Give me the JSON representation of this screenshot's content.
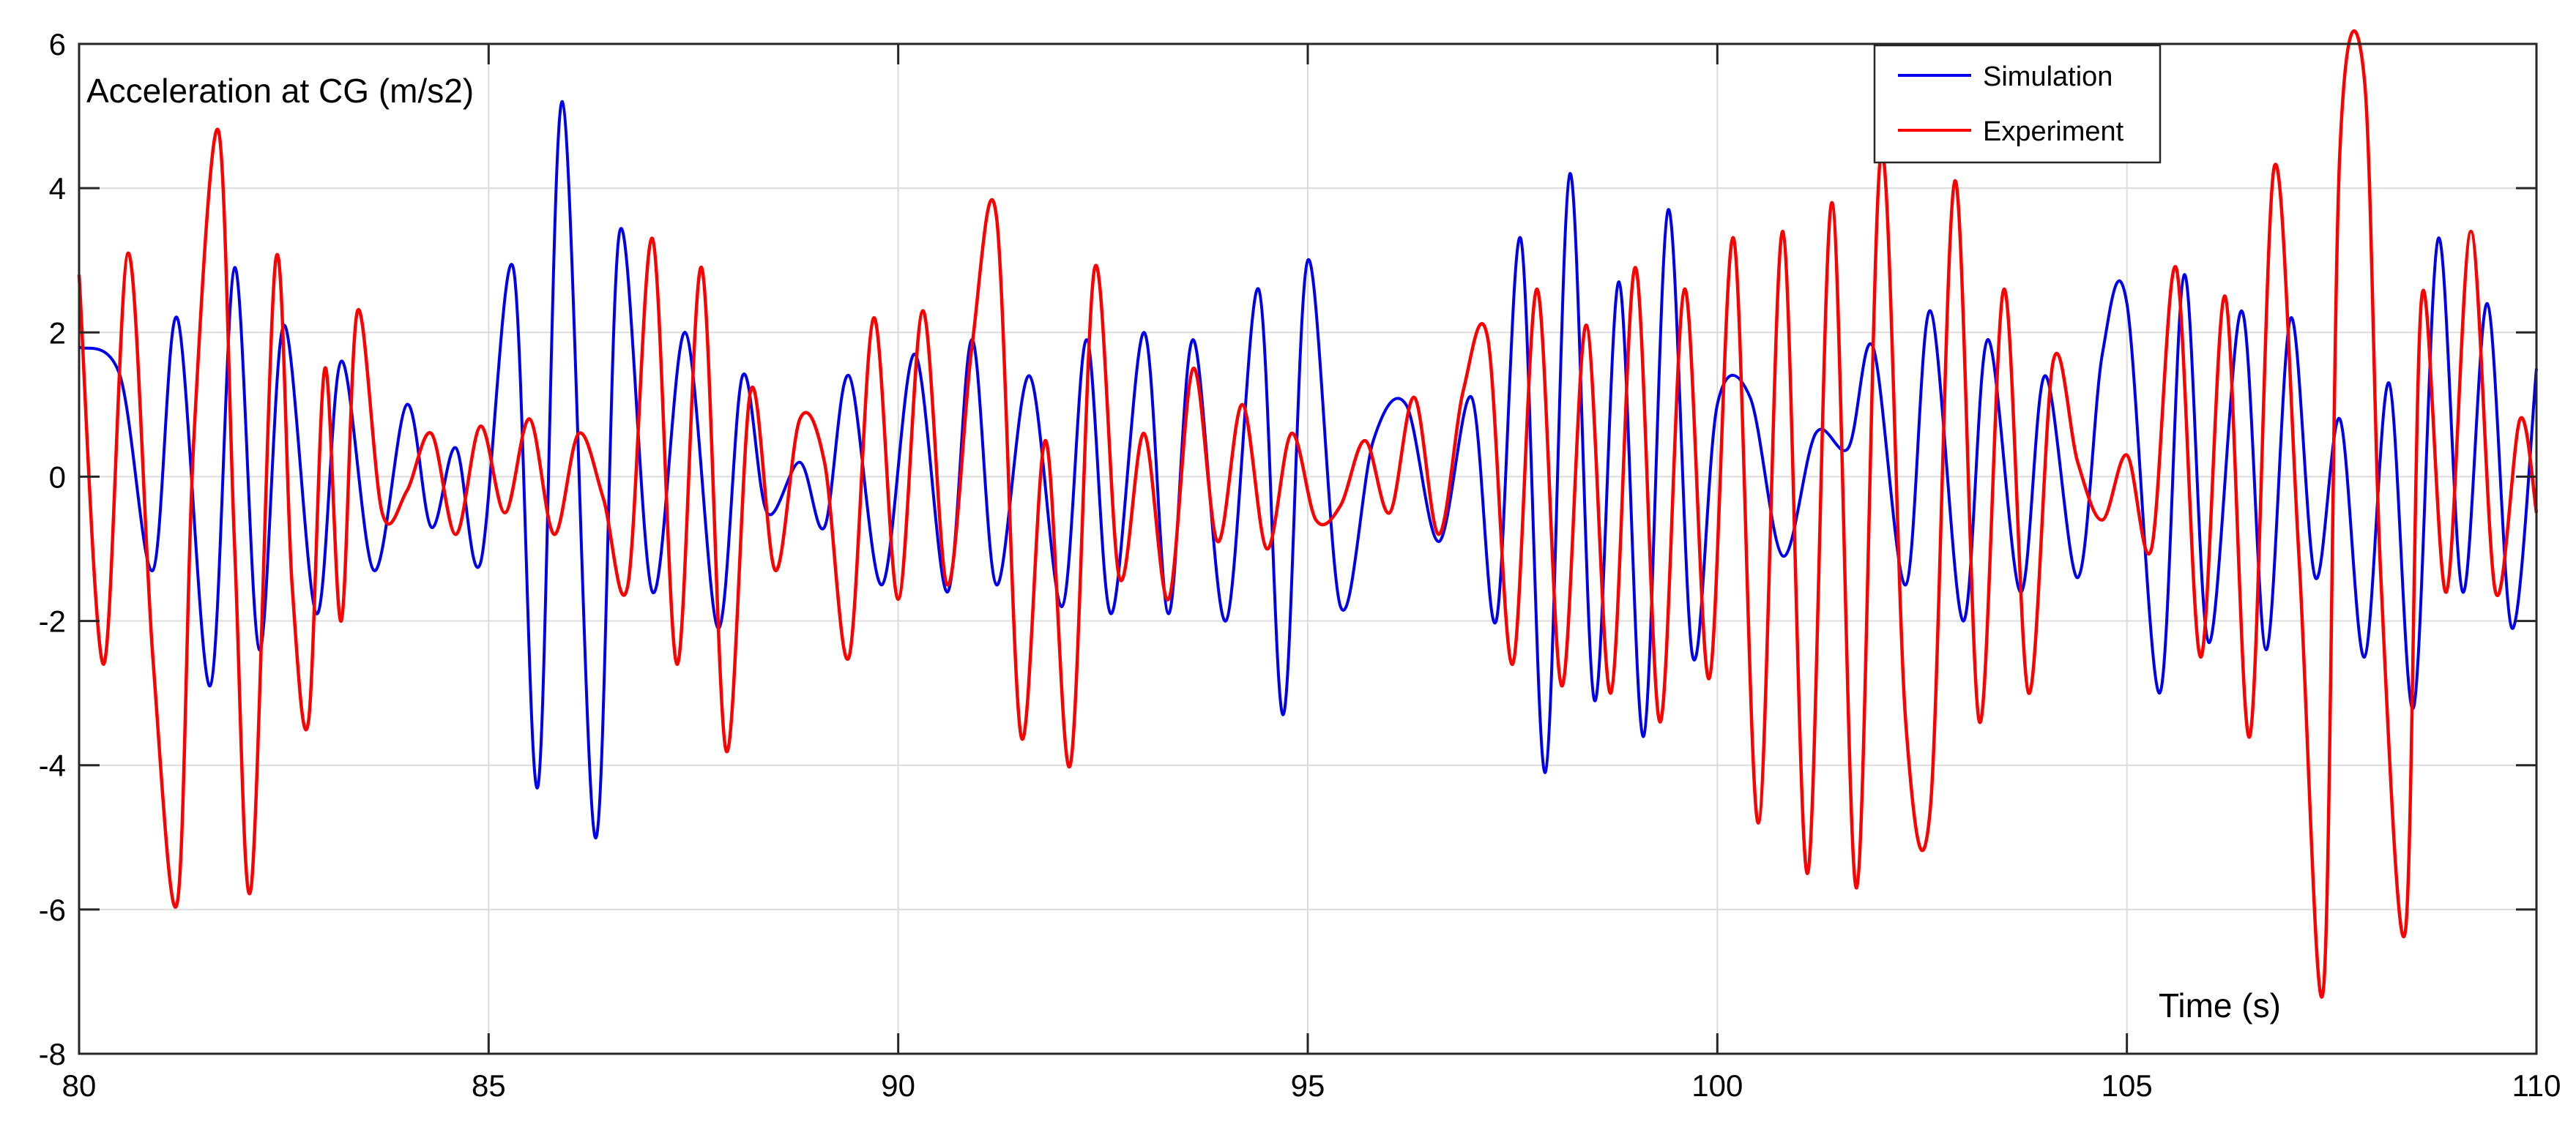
{
  "chart_data": {
    "type": "line",
    "title": "",
    "xlabel": "Time (s)",
    "ylabel": "Acceleration at CG (m/s2)",
    "xlim": [
      80,
      110
    ],
    "ylim": [
      -8,
      6
    ],
    "xticks": [
      80,
      85,
      90,
      95,
      100,
      105,
      110
    ],
    "yticks": [
      -8,
      -6,
      -4,
      -2,
      0,
      2,
      4,
      6
    ],
    "grid": true,
    "legend_position": "top-right",
    "series": [
      {
        "name": "Simulation",
        "color": "#0000ee",
        "x": [
          80.0,
          80.5,
          80.9,
          81.2,
          81.6,
          81.9,
          82.2,
          82.5,
          82.9,
          83.2,
          83.6,
          84.0,
          84.3,
          84.6,
          84.9,
          85.3,
          85.6,
          85.9,
          86.3,
          86.6,
          87.0,
          87.4,
          87.8,
          88.1,
          88.4,
          88.8,
          89.1,
          89.4,
          89.8,
          90.2,
          90.6,
          90.9,
          91.2,
          91.6,
          92.0,
          92.3,
          92.6,
          93.0,
          93.3,
          93.6,
          94.0,
          94.4,
          94.7,
          95.0,
          95.4,
          95.8,
          96.2,
          96.6,
          97.0,
          97.3,
          97.6,
          97.9,
          98.2,
          98.5,
          98.8,
          99.1,
          99.4,
          99.7,
          100.0,
          100.4,
          100.8,
          101.2,
          101.6,
          101.9,
          102.3,
          102.6,
          103.0,
          103.3,
          103.7,
          104.0,
          104.4,
          104.7,
          105.0,
          105.4,
          105.7,
          106.0,
          106.4,
          106.7,
          107.0,
          107.3,
          107.6,
          107.9,
          108.2,
          108.5,
          108.8,
          109.1,
          109.4,
          109.7,
          110.0
        ],
        "y": [
          1.8,
          1.4,
          -1.3,
          2.2,
          -2.9,
          2.9,
          -2.4,
          2.1,
          -1.9,
          1.6,
          -1.3,
          1.0,
          -0.7,
          0.4,
          -1.2,
          2.9,
          -4.3,
          5.2,
          -5.0,
          3.4,
          -1.6,
          2.0,
          -2.1,
          1.4,
          -0.5,
          0.2,
          -0.7,
          1.4,
          -1.5,
          1.7,
          -1.6,
          1.9,
          -1.5,
          1.4,
          -1.8,
          1.9,
          -1.9,
          2.0,
          -1.9,
          1.9,
          -2.0,
          2.6,
          -3.3,
          3.0,
          -1.8,
          0.5,
          1.0,
          -0.9,
          1.1,
          -2.0,
          3.3,
          -4.1,
          4.2,
          -3.1,
          2.7,
          -3.6,
          3.7,
          -2.5,
          1.0,
          1.1,
          -1.1,
          0.6,
          0.4,
          1.8,
          -1.5,
          2.3,
          -2.0,
          1.9,
          -1.6,
          1.4,
          -1.4,
          1.7,
          2.4,
          -3.0,
          2.8,
          -2.3,
          2.3,
          -2.4,
          2.2,
          -1.4,
          0.8,
          -2.5,
          1.3,
          -3.2,
          3.3,
          -1.6,
          2.4,
          -2.1,
          1.5
        ]
      },
      {
        "name": "Experiment",
        "color": "#ff0000",
        "x": [
          80.0,
          80.3,
          80.6,
          80.9,
          81.2,
          81.4,
          81.7,
          81.9,
          82.1,
          82.4,
          82.6,
          82.8,
          83.0,
          83.2,
          83.4,
          83.7,
          84.0,
          84.3,
          84.6,
          84.9,
          85.2,
          85.5,
          85.8,
          86.1,
          86.4,
          86.7,
          87.0,
          87.3,
          87.6,
          87.9,
          88.2,
          88.5,
          88.8,
          89.1,
          89.4,
          89.7,
          90.0,
          90.3,
          90.6,
          90.9,
          91.2,
          91.5,
          91.8,
          92.1,
          92.4,
          92.7,
          93.0,
          93.3,
          93.6,
          93.9,
          94.2,
          94.5,
          94.8,
          95.1,
          95.4,
          95.7,
          96.0,
          96.3,
          96.6,
          96.9,
          97.2,
          97.5,
          97.8,
          98.1,
          98.4,
          98.7,
          99.0,
          99.3,
          99.6,
          99.9,
          100.2,
          100.5,
          100.8,
          101.1,
          101.4,
          101.7,
          102.0,
          102.3,
          102.6,
          102.9,
          103.2,
          103.5,
          103.8,
          104.1,
          104.4,
          104.7,
          105.0,
          105.3,
          105.6,
          105.9,
          106.2,
          106.5,
          106.8,
          107.1,
          107.4,
          107.6,
          107.9,
          108.1,
          108.4,
          108.6,
          108.9,
          109.2,
          109.5,
          109.8,
          110.0
        ],
        "y": [
          2.8,
          -2.6,
          3.1,
          -2.5,
          -5.9,
          0.5,
          4.8,
          -1.0,
          -5.7,
          3.0,
          -1.5,
          -3.4,
          1.5,
          -2.0,
          2.3,
          -0.5,
          -0.2,
          0.6,
          -0.8,
          0.7,
          -0.5,
          0.8,
          -0.8,
          0.6,
          -0.3,
          -1.5,
          3.3,
          -2.6,
          2.9,
          -3.8,
          1.2,
          -1.3,
          0.8,
          0.2,
          -2.5,
          2.2,
          -1.7,
          2.3,
          -1.5,
          1.8,
          3.6,
          -3.6,
          0.5,
          -4.0,
          2.9,
          -1.4,
          0.6,
          -1.7,
          1.5,
          -0.9,
          1.0,
          -1.0,
          0.6,
          -0.6,
          -0.4,
          0.5,
          -0.5,
          1.1,
          -0.8,
          1.2,
          1.9,
          -2.6,
          2.6,
          -2.9,
          2.1,
          -3.0,
          2.9,
          -3.4,
          2.6,
          -2.8,
          3.3,
          -4.8,
          3.4,
          -5.5,
          3.8,
          -5.7,
          4.5,
          -3.4,
          -4.6,
          4.1,
          -3.4,
          2.6,
          -3.0,
          1.6,
          0.2,
          -0.6,
          0.3,
          -1.0,
          2.9,
          -2.5,
          2.5,
          -3.6,
          4.3,
          -1.1,
          -7.1,
          4.5,
          5.5,
          -1.4,
          -6.3,
          2.5,
          -1.6,
          3.4,
          -1.6,
          0.8,
          -0.5
        ]
      }
    ]
  }
}
